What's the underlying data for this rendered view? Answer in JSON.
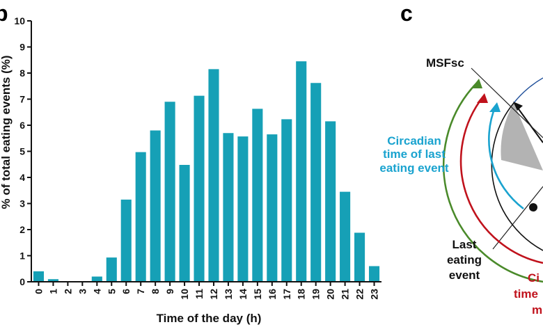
{
  "panels": {
    "left_letter": "b",
    "right_letter": "c"
  },
  "colors": {
    "bar": "#16a0b6",
    "axis": "#111111",
    "green": "#4a8a2a",
    "red": "#c0121c",
    "blue": "#1aa3cf",
    "gray_fill": "#b3b3b3"
  },
  "chart_data": {
    "type": "bar",
    "categories": [
      "0",
      "1",
      "2",
      "3",
      "4",
      "5",
      "6",
      "7",
      "8",
      "9",
      "10",
      "11",
      "12",
      "13",
      "14",
      "15",
      "16",
      "17",
      "18",
      "19",
      "20",
      "21",
      "22",
      "23"
    ],
    "values": [
      0.4,
      0.1,
      0,
      0,
      0.2,
      0.93,
      3.15,
      4.97,
      5.8,
      6.9,
      4.48,
      7.13,
      8.15,
      5.7,
      5.57,
      6.63,
      5.65,
      6.23,
      8.45,
      7.62,
      6.15,
      3.45,
      1.88,
      0.6
    ],
    "xlabel": "Time of the day (h)",
    "ylabel": "% of total eating events (%)",
    "ylim": [
      0,
      10
    ],
    "yticks": [
      "0",
      "1",
      "2",
      "3",
      "4",
      "5",
      "6",
      "7",
      "8",
      "9",
      "10"
    ],
    "grid": false
  },
  "diagram": {
    "msfsc": "MSFsc",
    "circadian_last_line1": "Circadian",
    "circadian_last_line2": "time of last",
    "circadian_last_line3": "eating event",
    "last_event_line1": "Last",
    "last_event_line2": "eating",
    "last_event_line3": "event",
    "red_line1": "Ci",
    "red_line2": "time",
    "red_line3": "m"
  }
}
